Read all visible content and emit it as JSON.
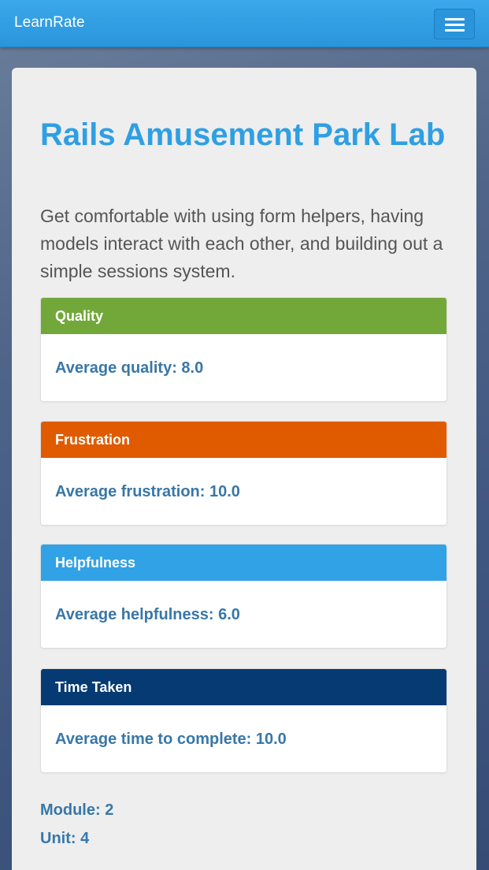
{
  "navbar": {
    "brand": "LearnRate",
    "toggle_icon": "hamburger-menu-icon"
  },
  "lesson": {
    "title": "Rails Amusement Park Lab",
    "description": "Get comfortable with using form helpers, having models interact with each other, and building out a simple sessions system."
  },
  "panels": [
    {
      "heading": "Quality",
      "text": "Average quality: 8.0",
      "color": "#72a839"
    },
    {
      "heading": "Frustration",
      "text": "Average frustration: 10.0",
      "color": "#e05b00"
    },
    {
      "heading": "Helpfulness",
      "text": "Average helpfulness: 6.0",
      "color": "#31a2e6"
    },
    {
      "heading": "Time Taken",
      "text": "Average time to complete: 10.0",
      "color": "#053a73"
    }
  ],
  "meta": {
    "module": "Module: 2",
    "unit": "Unit: 4"
  }
}
